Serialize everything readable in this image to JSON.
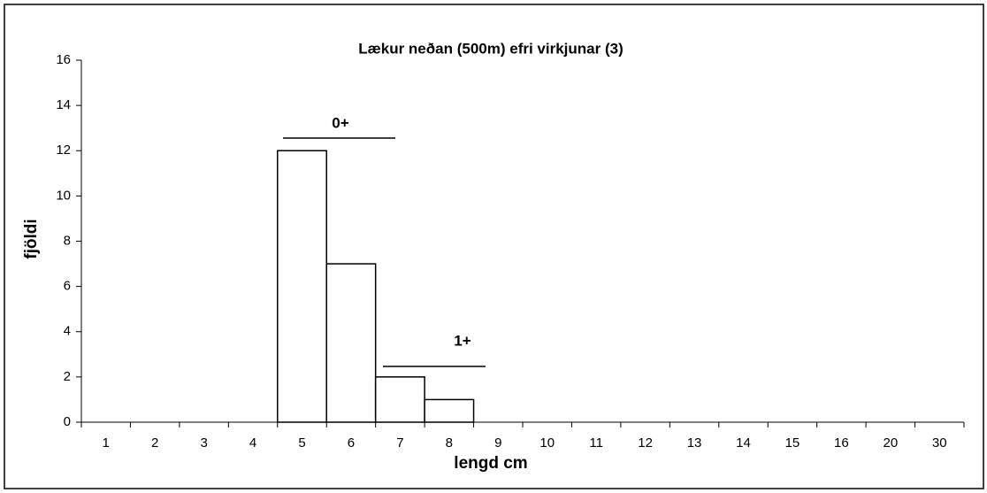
{
  "chart_data": {
    "type": "bar",
    "title": "Lækur neðan (500m) efri virkjunar (3)",
    "xlabel": "lengd cm",
    "ylabel": "fjöldi",
    "categories": [
      "1",
      "2",
      "3",
      "4",
      "5",
      "6",
      "7",
      "8",
      "9",
      "10",
      "11",
      "12",
      "13",
      "14",
      "15",
      "16",
      "20",
      "30"
    ],
    "values": [
      0,
      0,
      0,
      0,
      12,
      7,
      2,
      1,
      0,
      0,
      0,
      0,
      0,
      0,
      0,
      0,
      0,
      0
    ],
    "color": "#ffffff",
    "edgecolor": "#000000",
    "ylim": [
      0,
      16
    ],
    "yticks": [
      0,
      2,
      4,
      6,
      8,
      10,
      12,
      14,
      16
    ],
    "grid": false,
    "annotations": [
      "0+",
      "1+"
    ]
  }
}
